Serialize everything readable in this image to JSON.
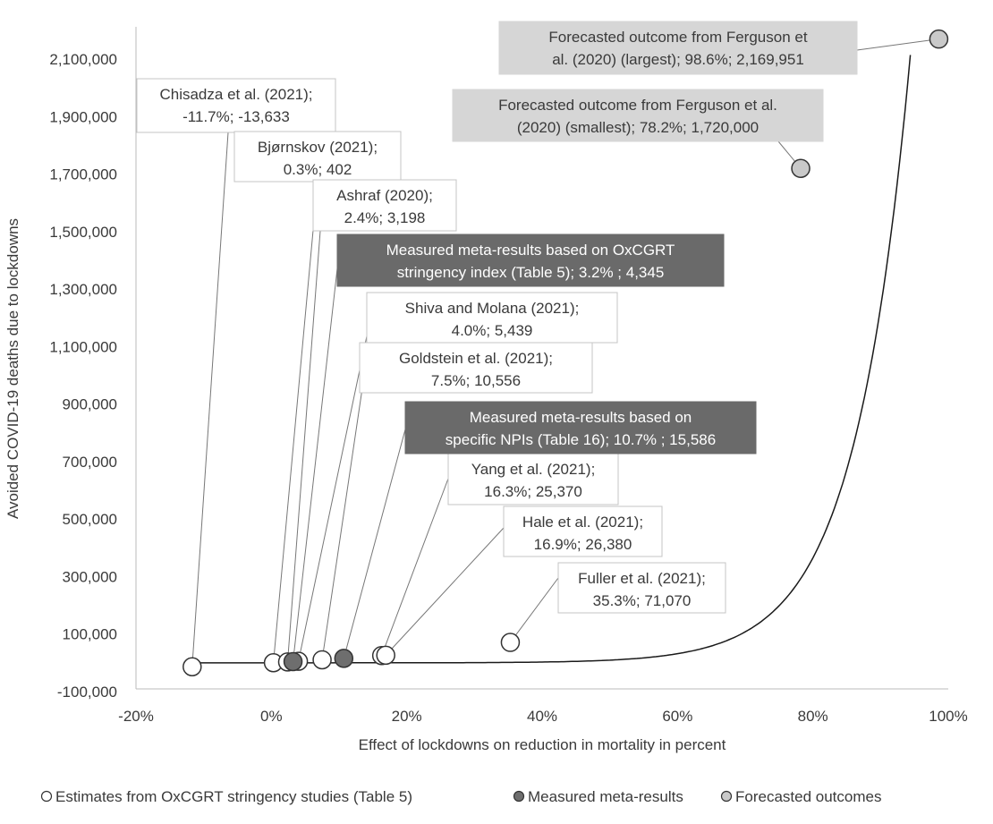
{
  "colors": {
    "estimate_fill": "#ffffff",
    "meta_fill": "#6e6e6e",
    "forecast_fill": "#c9c9c9",
    "dark_box": "#6a6a6a",
    "light_box": "#d6d6d6",
    "curve": "#1a1a1a",
    "leader": "#777777"
  },
  "chart_data": {
    "type": "scatter",
    "title": "",
    "xlabel": "Effect of lockdowns on reduction in mortality in percent",
    "ylabel": "Avoided COVID-19 deaths due to lockdowns",
    "xlim": [
      -20,
      100
    ],
    "ylim": [
      -100000,
      2200000
    ],
    "x_ticks": [
      -20,
      0,
      20,
      40,
      60,
      80,
      100
    ],
    "x_tick_labels": [
      "-20%",
      "0%",
      "20%",
      "40%",
      "60%",
      "80%",
      "100%"
    ],
    "y_ticks": [
      -100000,
      100000,
      300000,
      500000,
      700000,
      900000,
      1100000,
      1300000,
      1500000,
      1700000,
      1900000,
      2100000
    ],
    "y_tick_labels": [
      "-100,000",
      "100,000",
      "300,000",
      "500,000",
      "700,000",
      "900,000",
      "1,100,000",
      "1,300,000",
      "1,500,000",
      "1,700,000",
      "1,900,000",
      "2,100,000"
    ],
    "grid": false,
    "legend_position": "bottom",
    "series": [
      {
        "name": "Estimates from OxCGRT stringency studies (Table 5)",
        "kind": "estimate",
        "points": [
          {
            "x": -11.7,
            "y": -13633,
            "label": [
              "Chisadza et al. (2021);",
              "-11.7%; -13,633"
            ]
          },
          {
            "x": 0.3,
            "y": 402,
            "label": [
              "Bjørnskov (2021);",
              "0.3%; 402"
            ]
          },
          {
            "x": 2.4,
            "y": 3198,
            "label": [
              "Ashraf (2020);",
              "2.4%; 3,198"
            ]
          },
          {
            "x": 4.0,
            "y": 5439,
            "label": [
              "Shiva and Molana (2021);",
              "4.0%; 5,439"
            ]
          },
          {
            "x": 7.5,
            "y": 10556,
            "label": [
              "Goldstein et al. (2021);",
              "7.5%; 10,556"
            ]
          },
          {
            "x": 16.3,
            "y": 25370,
            "label": [
              "Yang et al. (2021);",
              "16.3%; 25,370"
            ]
          },
          {
            "x": 16.9,
            "y": 26380,
            "label": [
              "Hale et al. (2021);",
              "16.9%; 26,380"
            ]
          },
          {
            "x": 35.3,
            "y": 71070,
            "label": [
              "Fuller et al. (2021);",
              "35.3%; 71,070"
            ]
          }
        ]
      },
      {
        "name": "Measured meta-results",
        "kind": "meta",
        "points": [
          {
            "x": 3.2,
            "y": 4345,
            "label": [
              "Measured meta-results based on OxCGRT",
              "stringency index (Table 5); 3.2% ; 4,345"
            ]
          },
          {
            "x": 10.7,
            "y": 15586,
            "label": [
              "Measured meta-results based on",
              "specific NPIs (Table 16); 10.7% ; 15,586"
            ]
          }
        ]
      },
      {
        "name": "Forecasted outcomes",
        "kind": "forecast",
        "points": [
          {
            "x": 98.6,
            "y": 2169951,
            "label": [
              "Forecasted outcome from Ferguson et",
              "al. (2020) (largest); 98.6%; 2,169,951"
            ]
          },
          {
            "x": 78.2,
            "y": 1720000,
            "label": [
              "Forecasted outcome from Ferguson et al.",
              "(2020) (smallest); 78.2%; 1,720,000"
            ]
          }
        ]
      }
    ]
  }
}
